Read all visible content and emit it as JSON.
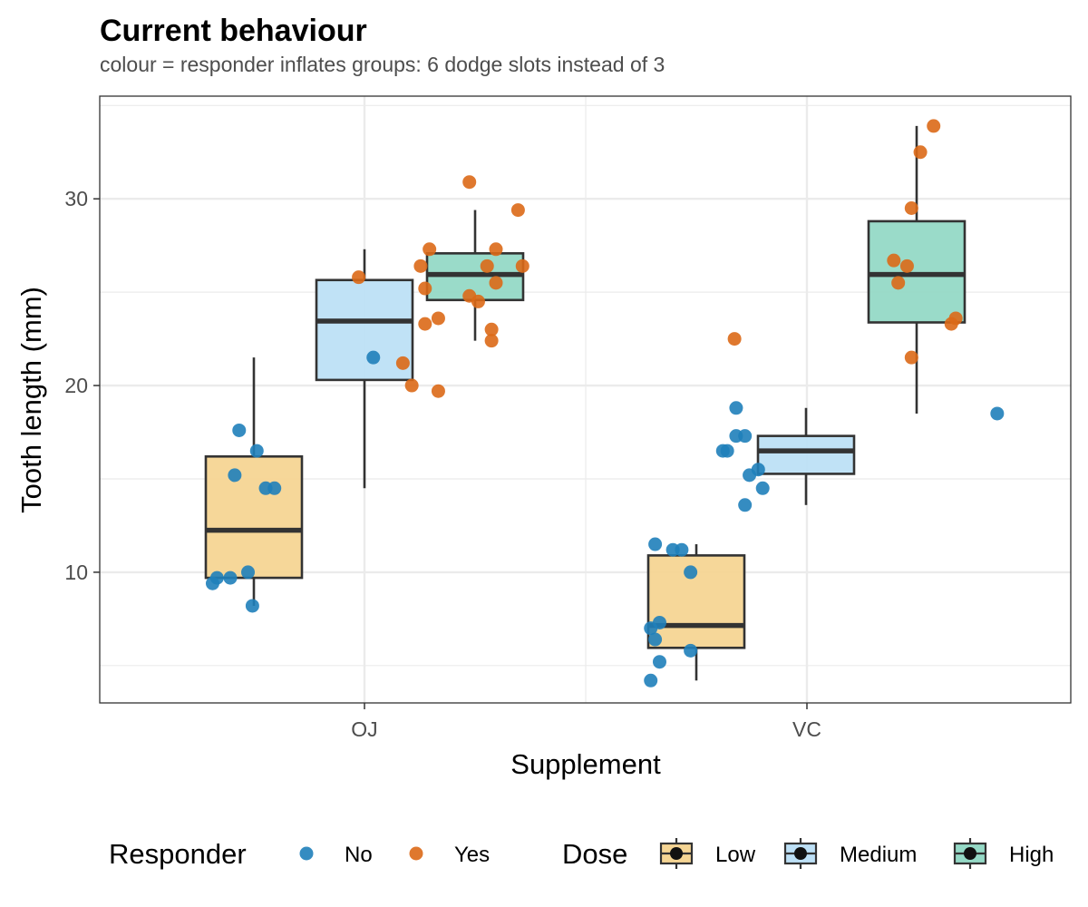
{
  "chart_data": {
    "type": "boxplot",
    "title": "Current behaviour",
    "subtitle": "colour = responder inflates groups: 6 dodge slots instead of 3",
    "xlabel": "Supplement",
    "ylabel": "Tooth length (mm)",
    "categories": [
      "OJ",
      "VC"
    ],
    "ylim": [
      3,
      35.5
    ],
    "yticks": [
      10,
      20,
      30
    ],
    "grid": true,
    "dose_levels": [
      {
        "name": "Low",
        "color": "#f5d594"
      },
      {
        "name": "Medium",
        "color": "#bde0f6"
      },
      {
        "name": "High",
        "color": "#95d9c6"
      }
    ],
    "responder_levels": [
      {
        "name": "No",
        "color": "#1f7fba"
      },
      {
        "name": "Yes",
        "color": "#dc6917"
      }
    ],
    "boxes": [
      {
        "supplement": "OJ",
        "dose": "Low",
        "whisker_low": 8.2,
        "q1": 9.7,
        "median": 12.25,
        "q3": 16.2,
        "whisker_high": 21.5
      },
      {
        "supplement": "OJ",
        "dose": "Medium",
        "whisker_low": 14.5,
        "q1": 20.3,
        "median": 23.45,
        "q3": 25.65,
        "whisker_high": 27.3
      },
      {
        "supplement": "OJ",
        "dose": "High",
        "whisker_low": 22.4,
        "q1": 24.58,
        "median": 25.95,
        "q3": 27.08,
        "whisker_high": 29.4
      },
      {
        "supplement": "VC",
        "dose": "Low",
        "whisker_low": 4.2,
        "q1": 5.95,
        "median": 7.15,
        "q3": 10.9,
        "whisker_high": 11.5
      },
      {
        "supplement": "VC",
        "dose": "Medium",
        "whisker_low": 13.6,
        "q1": 15.27,
        "median": 16.5,
        "q3": 17.3,
        "whisker_high": 18.8
      },
      {
        "supplement": "VC",
        "dose": "High",
        "whisker_low": 18.5,
        "q1": 23.38,
        "median": 25.95,
        "q3": 28.8,
        "whisker_high": 33.9
      }
    ],
    "points": [
      {
        "supplement": "OJ",
        "slot": 1,
        "responder": "No",
        "y": 17.6,
        "jitter": 0.02
      },
      {
        "supplement": "OJ",
        "slot": 1,
        "responder": "No",
        "y": 16.5,
        "jitter": 0.06
      },
      {
        "supplement": "OJ",
        "slot": 1,
        "responder": "No",
        "y": 15.2,
        "jitter": 0.01
      },
      {
        "supplement": "OJ",
        "slot": 1,
        "responder": "No",
        "y": 14.5,
        "jitter": 0.08
      },
      {
        "supplement": "OJ",
        "slot": 1,
        "responder": "No",
        "y": 10.0,
        "jitter": 0.04
      },
      {
        "supplement": "OJ",
        "slot": 1,
        "responder": "No",
        "y": 9.7,
        "jitter": -0.03
      },
      {
        "supplement": "OJ",
        "slot": 1,
        "responder": "No",
        "y": 9.7,
        "jitter": 0.0
      },
      {
        "supplement": "OJ",
        "slot": 1,
        "responder": "No",
        "y": 9.4,
        "jitter": -0.04
      },
      {
        "supplement": "OJ",
        "slot": 1,
        "responder": "No",
        "y": 8.2,
        "jitter": 0.05
      },
      {
        "supplement": "OJ",
        "slot": 2,
        "responder": "No",
        "y": 14.5,
        "jitter": -0.06
      },
      {
        "supplement": "OJ",
        "slot": 3,
        "responder": "No",
        "y": 21.5,
        "jitter": 0.02
      },
      {
        "supplement": "OJ",
        "slot": 4,
        "responder": "Yes",
        "y": 27.3,
        "jitter": -0.14
      },
      {
        "supplement": "OJ",
        "slot": 4,
        "responder": "Yes",
        "y": 26.4,
        "jitter": -0.16
      },
      {
        "supplement": "OJ",
        "slot": 4,
        "responder": "Yes",
        "y": 25.8,
        "jitter": -0.3
      },
      {
        "supplement": "OJ",
        "slot": 4,
        "responder": "Yes",
        "y": 25.2,
        "jitter": -0.15
      },
      {
        "supplement": "OJ",
        "slot": 4,
        "responder": "Yes",
        "y": 23.6,
        "jitter": -0.12
      },
      {
        "supplement": "OJ",
        "slot": 4,
        "responder": "Yes",
        "y": 23.3,
        "jitter": -0.15
      },
      {
        "supplement": "OJ",
        "slot": 4,
        "responder": "Yes",
        "y": 21.2,
        "jitter": -0.2
      },
      {
        "supplement": "OJ",
        "slot": 4,
        "responder": "Yes",
        "y": 20.0,
        "jitter": -0.18
      },
      {
        "supplement": "OJ",
        "slot": 4,
        "responder": "Yes",
        "y": 19.7,
        "jitter": -0.12
      },
      {
        "supplement": "OJ",
        "slot": 6,
        "responder": "Yes",
        "y": 30.9,
        "jitter": -0.06
      },
      {
        "supplement": "OJ",
        "slot": 6,
        "responder": "Yes",
        "y": 29.4,
        "jitter": 0.05
      },
      {
        "supplement": "OJ",
        "slot": 6,
        "responder": "Yes",
        "y": 27.3,
        "jitter": 0.0
      },
      {
        "supplement": "OJ",
        "slot": 6,
        "responder": "Yes",
        "y": 26.4,
        "jitter": -0.02
      },
      {
        "supplement": "OJ",
        "slot": 6,
        "responder": "Yes",
        "y": 26.4,
        "jitter": 0.06
      },
      {
        "supplement": "OJ",
        "slot": 6,
        "responder": "Yes",
        "y": 25.5,
        "jitter": 0.0
      },
      {
        "supplement": "OJ",
        "slot": 6,
        "responder": "Yes",
        "y": 24.8,
        "jitter": -0.06
      },
      {
        "supplement": "OJ",
        "slot": 6,
        "responder": "Yes",
        "y": 24.5,
        "jitter": -0.04
      },
      {
        "supplement": "OJ",
        "slot": 6,
        "responder": "Yes",
        "y": 23.0,
        "jitter": -0.01
      },
      {
        "supplement": "OJ",
        "slot": 6,
        "responder": "Yes",
        "y": 22.4,
        "jitter": -0.01
      },
      {
        "supplement": "VC",
        "slot": 1,
        "responder": "No",
        "y": 11.5,
        "jitter": -0.05
      },
      {
        "supplement": "VC",
        "slot": 1,
        "responder": "No",
        "y": 11.2,
        "jitter": -0.01
      },
      {
        "supplement": "VC",
        "slot": 1,
        "responder": "No",
        "y": 11.2,
        "jitter": 0.01
      },
      {
        "supplement": "VC",
        "slot": 1,
        "responder": "No",
        "y": 10.0,
        "jitter": 0.03
      },
      {
        "supplement": "VC",
        "slot": 1,
        "responder": "No",
        "y": 7.3,
        "jitter": -0.04
      },
      {
        "supplement": "VC",
        "slot": 1,
        "responder": "No",
        "y": 7.0,
        "jitter": -0.06
      },
      {
        "supplement": "VC",
        "slot": 1,
        "responder": "No",
        "y": 6.4,
        "jitter": -0.05
      },
      {
        "supplement": "VC",
        "slot": 1,
        "responder": "No",
        "y": 5.8,
        "jitter": 0.03
      },
      {
        "supplement": "VC",
        "slot": 1,
        "responder": "No",
        "y": 5.2,
        "jitter": -0.04
      },
      {
        "supplement": "VC",
        "slot": 1,
        "responder": "No",
        "y": 4.2,
        "jitter": -0.06
      },
      {
        "supplement": "VC",
        "slot": 3,
        "responder": "No",
        "y": 18.8,
        "jitter": -0.16
      },
      {
        "supplement": "VC",
        "slot": 3,
        "responder": "No",
        "y": 17.3,
        "jitter": -0.16
      },
      {
        "supplement": "VC",
        "slot": 3,
        "responder": "No",
        "y": 17.3,
        "jitter": -0.14
      },
      {
        "supplement": "VC",
        "slot": 3,
        "responder": "No",
        "y": 16.5,
        "jitter": -0.19
      },
      {
        "supplement": "VC",
        "slot": 3,
        "responder": "No",
        "y": 16.5,
        "jitter": -0.18
      },
      {
        "supplement": "VC",
        "slot": 3,
        "responder": "No",
        "y": 15.5,
        "jitter": -0.11
      },
      {
        "supplement": "VC",
        "slot": 3,
        "responder": "No",
        "y": 15.2,
        "jitter": -0.13
      },
      {
        "supplement": "VC",
        "slot": 3,
        "responder": "No",
        "y": 14.5,
        "jitter": -0.1
      },
      {
        "supplement": "VC",
        "slot": 3,
        "responder": "No",
        "y": 13.6,
        "jitter": -0.14
      },
      {
        "supplement": "VC",
        "slot": 3,
        "responder": "No",
        "y": 18.5,
        "jitter": 0.43
      },
      {
        "supplement": "VC",
        "slot": 6,
        "responder": "Yes",
        "y": 33.9,
        "jitter": 0.19
      },
      {
        "supplement": "VC",
        "slot": 6,
        "responder": "Yes",
        "y": 32.5,
        "jitter": 0.16
      },
      {
        "supplement": "VC",
        "slot": 6,
        "responder": "Yes",
        "y": 29.5,
        "jitter": 0.14
      },
      {
        "supplement": "VC",
        "slot": 6,
        "responder": "Yes",
        "y": 26.7,
        "jitter": 0.1
      },
      {
        "supplement": "VC",
        "slot": 6,
        "responder": "Yes",
        "y": 26.4,
        "jitter": 0.13
      },
      {
        "supplement": "VC",
        "slot": 6,
        "responder": "Yes",
        "y": 25.5,
        "jitter": 0.11
      },
      {
        "supplement": "VC",
        "slot": 6,
        "responder": "Yes",
        "y": 23.6,
        "jitter": 0.24
      },
      {
        "supplement": "VC",
        "slot": 6,
        "responder": "Yes",
        "y": 23.3,
        "jitter": 0.23
      },
      {
        "supplement": "VC",
        "slot": 6,
        "responder": "Yes",
        "y": 22.5,
        "jitter": -0.26
      },
      {
        "supplement": "VC",
        "slot": 6,
        "responder": "Yes",
        "y": 21.5,
        "jitter": 0.14
      }
    ],
    "legends": [
      {
        "title": "Responder",
        "keys": [
          "No",
          "Yes"
        ]
      },
      {
        "title": "Dose",
        "keys": [
          "Low",
          "Medium",
          "High"
        ]
      }
    ]
  }
}
